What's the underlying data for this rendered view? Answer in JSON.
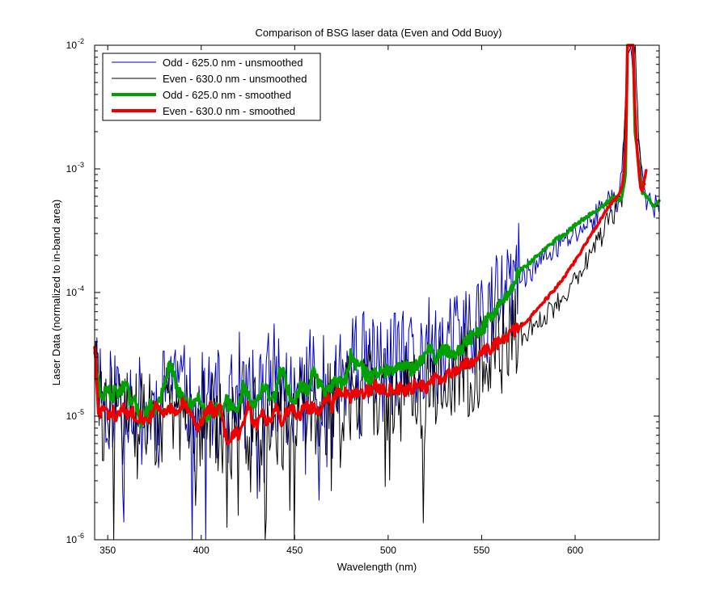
{
  "chart_data": {
    "type": "line",
    "title": "Comparison of BSG laser data (Even and Odd Buoy)",
    "xlabel": "Wavelength (nm)",
    "ylabel": "Laser Data (normalized to in-band area)",
    "xlim": [
      343,
      645
    ],
    "ylim": [
      1e-06,
      0.01
    ],
    "yscale": "log",
    "grid": false,
    "legend_position": "top-left",
    "x_ticks": [
      350,
      400,
      450,
      500,
      550,
      600
    ],
    "x_tick_labels": [
      "350",
      "400",
      "450",
      "500",
      "550",
      "600"
    ],
    "y_ticks": [
      1e-06,
      1e-05,
      0.0001,
      0.001,
      0.01
    ],
    "y_tick_labels": [
      {
        "base": "10",
        "exp": "-6"
      },
      {
        "base": "10",
        "exp": "-5"
      },
      {
        "base": "10",
        "exp": "-4"
      },
      {
        "base": "10",
        "exp": "-3"
      },
      {
        "base": "10",
        "exp": "-2"
      }
    ],
    "series": [
      {
        "name": "Odd - 625.0 nm - unsmoothed",
        "color": "#0000cc",
        "style": "thin",
        "noise": {
          "amplitude_decades": 0.45,
          "seed": 11
        },
        "x": [
          343,
          348,
          355,
          360,
          365,
          370,
          375,
          380,
          383,
          385,
          390,
          395,
          400,
          405,
          410,
          415,
          420,
          425,
          430,
          435,
          440,
          445,
          450,
          455,
          460,
          465,
          470,
          475,
          480,
          485,
          490,
          495,
          500,
          505,
          510,
          515,
          520,
          525,
          530,
          540,
          550,
          560,
          570,
          580,
          590,
          600,
          610,
          615,
          618,
          620,
          622,
          624,
          625,
          626,
          627,
          628,
          629,
          630,
          632,
          635,
          638,
          640,
          642,
          645
        ],
        "y": [
          3.5e-05,
          1.3e-05,
          1.5e-05,
          1.7e-05,
          1.2e-05,
          1e-05,
          1.2e-05,
          1.4e-05,
          2.4e-05,
          2.2e-05,
          1.4e-05,
          1.3e-05,
          1.2e-05,
          1.3e-05,
          1.2e-05,
          1.1e-05,
          1.8e-05,
          1.2e-05,
          1.3e-05,
          1.7e-05,
          2.1e-05,
          1.5e-05,
          1.3e-05,
          1.8e-05,
          2.1e-05,
          1.6e-05,
          1.7e-05,
          2e-05,
          2.3e-05,
          2.8e-05,
          2.3e-05,
          2.5e-05,
          2.4e-05,
          2.5e-05,
          2.6e-05,
          2.3e-05,
          3.2e-05,
          3.6e-05,
          3e-05,
          4.4e-05,
          6e-05,
          8e-05,
          0.00013,
          0.00017,
          0.00023,
          0.0003,
          0.0004,
          0.0005,
          0.0006,
          0.00055,
          0.0005,
          0.0007,
          0.001,
          0.0015,
          0.003,
          0.01,
          0.01,
          0.01,
          0.003,
          0.0015,
          0.0006,
          0.0005,
          0.00045,
          0.00058
        ]
      },
      {
        "name": "Even - 630.0 nm - unsmoothed",
        "color": "#000000",
        "style": "thin",
        "noise": {
          "amplitude_decades": 0.4,
          "seed": 29
        },
        "x": [
          343,
          346,
          350,
          355,
          360,
          365,
          370,
          375,
          380,
          385,
          390,
          395,
          400,
          405,
          410,
          415,
          420,
          425,
          430,
          435,
          440,
          445,
          450,
          455,
          460,
          465,
          470,
          475,
          480,
          485,
          490,
          495,
          500,
          505,
          510,
          515,
          520,
          525,
          530,
          540,
          550,
          560,
          570,
          580,
          590,
          600,
          605,
          610,
          615,
          620,
          625,
          628,
          630,
          632,
          634,
          636,
          638
        ],
        "y": [
          3.8e-05,
          1e-05,
          1.1e-05,
          1e-05,
          9.5e-06,
          1e-05,
          9e-06,
          1.1e-05,
          9.5e-06,
          1e-05,
          1.1e-05,
          9e-06,
          9.5e-06,
          1e-05,
          8e-06,
          6.5e-06,
          8e-06,
          8.5e-06,
          1.1e-05,
          9e-06,
          1e-05,
          8.5e-06,
          1e-05,
          1.1e-05,
          1.2e-05,
          1.1e-05,
          1.2e-05,
          1.3e-05,
          1.4e-05,
          1.5e-05,
          1.5e-05,
          1.6e-05,
          1.5e-05,
          1.5e-05,
          1.6e-05,
          1.6e-05,
          1.7e-05,
          1.9e-05,
          1.9e-05,
          2.3e-05,
          3e-05,
          3.7e-05,
          4.5e-05,
          5.6e-05,
          8e-05,
          0.00013,
          0.00017,
          0.00023,
          0.00031,
          0.00043,
          0.00056,
          0.01,
          0.01,
          0.01,
          0.0015,
          0.0007,
          0.0009
        ]
      },
      {
        "name": "Odd - 625.0 nm - smoothed",
        "color": "#00a000",
        "style": "thick",
        "noise": {
          "amplitude_decades": 0.06,
          "seed": 47
        },
        "x": [
          343,
          346,
          350,
          353,
          355,
          360,
          363,
          365,
          368,
          370,
          373,
          375,
          378,
          380,
          383,
          385,
          388,
          390,
          393,
          395,
          398,
          400,
          403,
          405,
          408,
          410,
          413,
          415,
          418,
          420,
          423,
          425,
          428,
          430,
          433,
          435,
          438,
          440,
          443,
          445,
          448,
          450,
          453,
          455,
          458,
          460,
          463,
          465,
          468,
          470,
          473,
          475,
          478,
          480,
          483,
          485,
          488,
          490,
          493,
          495,
          498,
          500,
          503,
          505,
          508,
          510,
          513,
          515,
          518,
          520,
          523,
          525,
          528,
          530,
          535,
          540,
          545,
          550,
          555,
          560,
          565,
          570,
          575,
          580,
          585,
          590,
          595,
          600,
          605,
          610,
          615,
          618,
          620,
          622,
          624,
          625,
          626,
          627,
          628,
          629,
          630,
          631,
          632,
          633,
          634,
          635,
          636,
          638,
          640,
          642,
          645
        ],
        "y": [
          3.5e-05,
          1.4e-05,
          1.6e-05,
          1.5e-05,
          1.6e-05,
          1.7e-05,
          1.2e-05,
          1.3e-05,
          9e-06,
          1e-05,
          1.3e-05,
          1.1e-05,
          1.4e-05,
          1.6e-05,
          2.6e-05,
          2.2e-05,
          1.5e-05,
          1.4e-05,
          1.2e-05,
          1.3e-05,
          1.4e-05,
          1.3e-05,
          1e-05,
          1.1e-05,
          1.2e-05,
          1.1e-05,
          1.4e-05,
          1.2e-05,
          1.1e-05,
          1.2e-05,
          1.8e-05,
          1.5e-05,
          1.2e-05,
          1.3e-05,
          1.8e-05,
          1.6e-05,
          1.3e-05,
          1.5e-05,
          2.6e-05,
          2e-05,
          1.4e-05,
          1.3e-05,
          1.7e-05,
          1.8e-05,
          1.6e-05,
          2.5e-05,
          1.8e-05,
          1.7e-05,
          1.5e-05,
          1.7e-05,
          2e-05,
          1.8e-05,
          2.2e-05,
          3e-05,
          2.6e-05,
          2.6e-05,
          2.2e-05,
          2e-05,
          2.3e-05,
          2.3e-05,
          2.2e-05,
          2.4e-05,
          2.5e-05,
          2.7e-05,
          2.4e-05,
          2.6e-05,
          2.4e-05,
          2.5e-05,
          2.8e-05,
          3.3e-05,
          3.4e-05,
          3e-05,
          3.2e-05,
          3.5e-05,
          3.2e-05,
          3.6e-05,
          4.5e-05,
          5e-05,
          6.5e-05,
          8e-05,
          0.0001,
          0.00015,
          0.00017,
          0.0002,
          0.00023,
          0.00027,
          0.0003,
          0.00035,
          0.0004,
          0.00045,
          0.0005,
          0.00055,
          0.0006,
          0.00058,
          0.00055,
          0.0006,
          0.0007,
          0.0009,
          0.01,
          0.01,
          0.01,
          0.01,
          0.002,
          0.0015,
          0.0011,
          0.0008,
          0.00065,
          0.0006,
          0.00056,
          0.0005,
          0.00054
        ]
      },
      {
        "name": "Even - 630.0 nm - smoothed",
        "color": "#ee0000",
        "style": "thick",
        "noise": {
          "amplitude_decades": 0.05,
          "seed": 83
        },
        "x": [
          343,
          345,
          348,
          350,
          353,
          355,
          358,
          360,
          363,
          365,
          368,
          370,
          373,
          375,
          378,
          380,
          383,
          385,
          388,
          390,
          393,
          395,
          398,
          400,
          403,
          405,
          408,
          410,
          413,
          415,
          418,
          420,
          423,
          425,
          428,
          430,
          433,
          435,
          438,
          440,
          443,
          445,
          448,
          450,
          453,
          455,
          458,
          460,
          463,
          465,
          468,
          470,
          473,
          475,
          478,
          480,
          483,
          485,
          488,
          490,
          493,
          495,
          498,
          500,
          505,
          510,
          515,
          520,
          525,
          530,
          535,
          540,
          545,
          550,
          555,
          560,
          565,
          570,
          575,
          580,
          585,
          590,
          595,
          600,
          605,
          610,
          615,
          620,
          623,
          625,
          626,
          627,
          628,
          629,
          630,
          631,
          632,
          633,
          634,
          635,
          636,
          637,
          638
        ],
        "y": [
          3.8e-05,
          1e-05,
          1.2e-05,
          1e-05,
          1.1e-05,
          9.5e-06,
          1.2e-05,
          1e-05,
          1.1e-05,
          1e-05,
          1e-05,
          9e-06,
          1e-05,
          1.2e-05,
          1.1e-05,
          1e-05,
          1.2e-05,
          1.1e-05,
          1e-05,
          1.3e-05,
          1.1e-05,
          1e-05,
          8e-06,
          9e-06,
          1.1e-05,
          1.2e-05,
          1e-05,
          1.2e-05,
          7e-06,
          6e-06,
          8e-06,
          7e-06,
          8.5e-06,
          1.2e-05,
          9e-06,
          8.5e-06,
          1.1e-05,
          9e-06,
          1e-05,
          1.3e-05,
          8.5e-06,
          1e-05,
          1.2e-05,
          1.1e-05,
          1e-05,
          1.3e-05,
          1.1e-05,
          1.2e-05,
          1.1e-05,
          1.3e-05,
          1.4e-05,
          1.2e-05,
          1.7e-05,
          1.5e-05,
          1.6e-05,
          1.4e-05,
          1.6e-05,
          1.5e-05,
          1.6e-05,
          1.6e-05,
          1.8e-05,
          1.6e-05,
          1.7e-05,
          1.6e-05,
          1.7e-05,
          1.6e-05,
          1.8e-05,
          1.7e-05,
          2e-05,
          2e-05,
          2.3e-05,
          2.6e-05,
          2.8e-05,
          3.2e-05,
          3.6e-05,
          4e-05,
          4.6e-05,
          5.2e-05,
          6e-05,
          7.5e-05,
          9e-05,
          0.00011,
          0.00014,
          0.00018,
          0.00024,
          0.00032,
          0.00042,
          0.00054,
          0.0006,
          0.0007,
          0.0009,
          0.0015,
          0.01,
          0.01,
          0.01,
          0.01,
          0.003,
          0.0015,
          0.001,
          0.0007,
          0.00065,
          0.0008,
          0.00095
        ]
      }
    ]
  }
}
